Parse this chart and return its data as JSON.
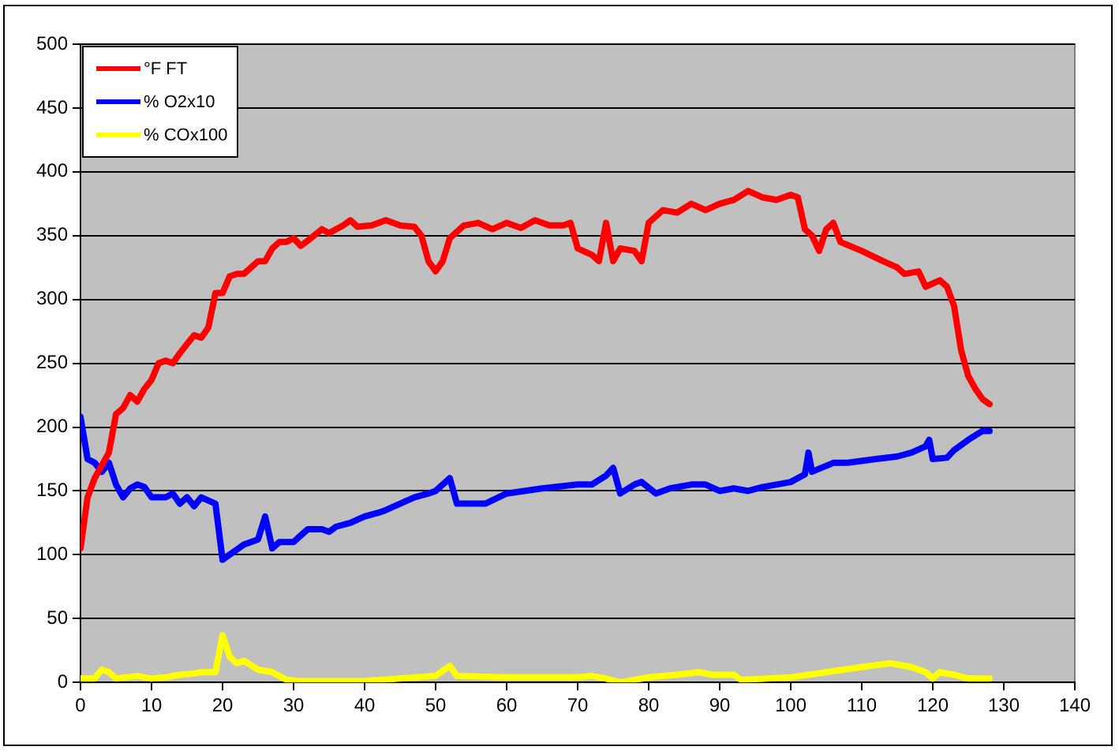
{
  "chart_data": {
    "type": "line",
    "xlim": [
      0,
      140
    ],
    "xticks": [
      0,
      10,
      20,
      30,
      40,
      50,
      60,
      70,
      80,
      90,
      100,
      110,
      120,
      130,
      140
    ],
    "ylim": [
      0,
      500
    ],
    "yticks": [
      0,
      50,
      100,
      150,
      200,
      250,
      300,
      350,
      400,
      450,
      500
    ],
    "grid": "y",
    "legend": "top left",
    "marker": "none",
    "line_style": "solid",
    "series": [
      {
        "name": "°F FT",
        "color": "#ff0000",
        "x": [
          0,
          1,
          2,
          3,
          4,
          5,
          6,
          7,
          8,
          9,
          10,
          11,
          12,
          13,
          14,
          15,
          16,
          17,
          18,
          19,
          20,
          21,
          22,
          23,
          24,
          25,
          26,
          27,
          28,
          29,
          30,
          31,
          32,
          34,
          35,
          37,
          38,
          39,
          41,
          43,
          45,
          47,
          48,
          49,
          50,
          51,
          52,
          54,
          56,
          58,
          60,
          62,
          64,
          66,
          68,
          69,
          70,
          72,
          73,
          74,
          75,
          76,
          78,
          79,
          80,
          82,
          84,
          86,
          88,
          90,
          92,
          94,
          96,
          98,
          100,
          101,
          102,
          103,
          104,
          105,
          106,
          107,
          110,
          113,
          115,
          116,
          118,
          119,
          121,
          122,
          123,
          124,
          125,
          126,
          127,
          128
        ],
        "values": [
          105,
          145,
          160,
          170,
          180,
          210,
          215,
          225,
          220,
          230,
          237,
          250,
          252,
          250,
          258,
          265,
          272,
          270,
          278,
          305,
          305,
          318,
          320,
          320,
          325,
          330,
          330,
          340,
          345,
          345,
          348,
          342,
          346,
          355,
          352,
          358,
          362,
          357,
          358,
          362,
          358,
          357,
          350,
          330,
          322,
          330,
          348,
          358,
          360,
          355,
          360,
          356,
          362,
          358,
          358,
          360,
          340,
          335,
          330,
          360,
          330,
          340,
          338,
          330,
          360,
          370,
          368,
          375,
          370,
          375,
          378,
          385,
          380,
          378,
          382,
          380,
          355,
          350,
          338,
          355,
          360,
          345,
          338,
          330,
          325,
          320,
          322,
          310,
          315,
          310,
          295,
          260,
          240,
          230,
          222,
          218
        ]
      },
      {
        "name": "% O2x10",
        "color": "#0000ff",
        "x": [
          0,
          1,
          2,
          3,
          4,
          5,
          6,
          7,
          8,
          9,
          10,
          12,
          13,
          14,
          15,
          16,
          17,
          19,
          20,
          21,
          23,
          25,
          26,
          27,
          28,
          30,
          31,
          32,
          34,
          35,
          36,
          38,
          40,
          42,
          43,
          45,
          47,
          49,
          50,
          52,
          53,
          57,
          60,
          65,
          70,
          72,
          74,
          75,
          76,
          78,
          79,
          81,
          83,
          86,
          88,
          90,
          92,
          94,
          96,
          98,
          100,
          102,
          102.5,
          103,
          106,
          108,
          112,
          115,
          117,
          119,
          119.5,
          120,
          122,
          123,
          125,
          127,
          128
        ],
        "values": [
          208,
          175,
          172,
          165,
          172,
          155,
          145,
          152,
          155,
          153,
          145,
          145,
          148,
          140,
          145,
          138,
          145,
          140,
          96,
          100,
          108,
          112,
          130,
          105,
          110,
          110,
          115,
          120,
          120,
          118,
          122,
          125,
          130,
          133,
          135,
          140,
          145,
          148,
          150,
          160,
          140,
          140,
          148,
          152,
          155,
          155,
          162,
          168,
          148,
          155,
          157,
          148,
          152,
          155,
          155,
          150,
          152,
          150,
          153,
          155,
          157,
          163,
          180,
          165,
          172,
          172,
          175,
          177,
          180,
          185,
          190,
          175,
          176,
          182,
          190,
          197,
          197
        ]
      },
      {
        "name": "% COx100",
        "color": "#ffff00",
        "x": [
          0,
          2,
          3,
          4,
          5,
          8,
          10,
          12,
          14,
          16,
          17,
          19,
          20,
          21,
          22,
          23,
          25,
          27,
          29,
          31,
          40,
          45,
          50,
          52,
          53,
          60,
          70,
          72,
          74,
          76,
          78,
          80,
          84,
          87,
          89,
          92,
          93,
          100,
          105,
          110,
          114,
          117,
          119,
          120,
          121,
          123,
          125,
          128
        ],
        "values": [
          3,
          3,
          10,
          8,
          3,
          5,
          3,
          4,
          6,
          7,
          8,
          8,
          37,
          20,
          15,
          17,
          10,
          8,
          2,
          1,
          1,
          3,
          5,
          13,
          5,
          4,
          4,
          5,
          3,
          0,
          2,
          4,
          6,
          8,
          6,
          6,
          2,
          4,
          8,
          12,
          15,
          12,
          8,
          3,
          8,
          6,
          3,
          3
        ]
      }
    ]
  }
}
